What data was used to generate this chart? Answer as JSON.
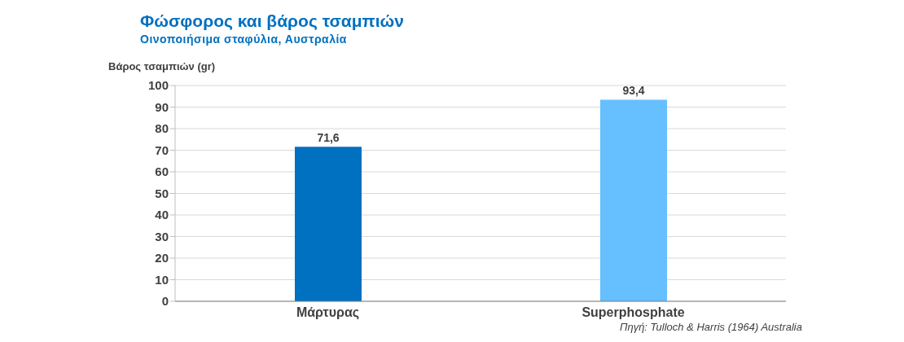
{
  "chart_data": {
    "type": "bar",
    "title": "Φώσφορος και βάρος τσαμπιών",
    "subtitle": "Οινοποιήσιμα σταφύλια, Αυστραλία",
    "ylabel": "Βάρος τσαμπιών (gr)",
    "categories": [
      "Μάρτυρας",
      "Superphosphate"
    ],
    "values": [
      71.6,
      93.4
    ],
    "value_labels": [
      "71,6",
      "93,4"
    ],
    "colors": [
      "#0070c0",
      "#66bfff"
    ],
    "ylim": [
      0,
      100
    ],
    "yticks": [
      0,
      10,
      20,
      30,
      40,
      50,
      60,
      70,
      80,
      90,
      100
    ],
    "grid": "y",
    "annotations": [
      "Πηγή: Tulloch & Harris (1964) Australia"
    ]
  }
}
